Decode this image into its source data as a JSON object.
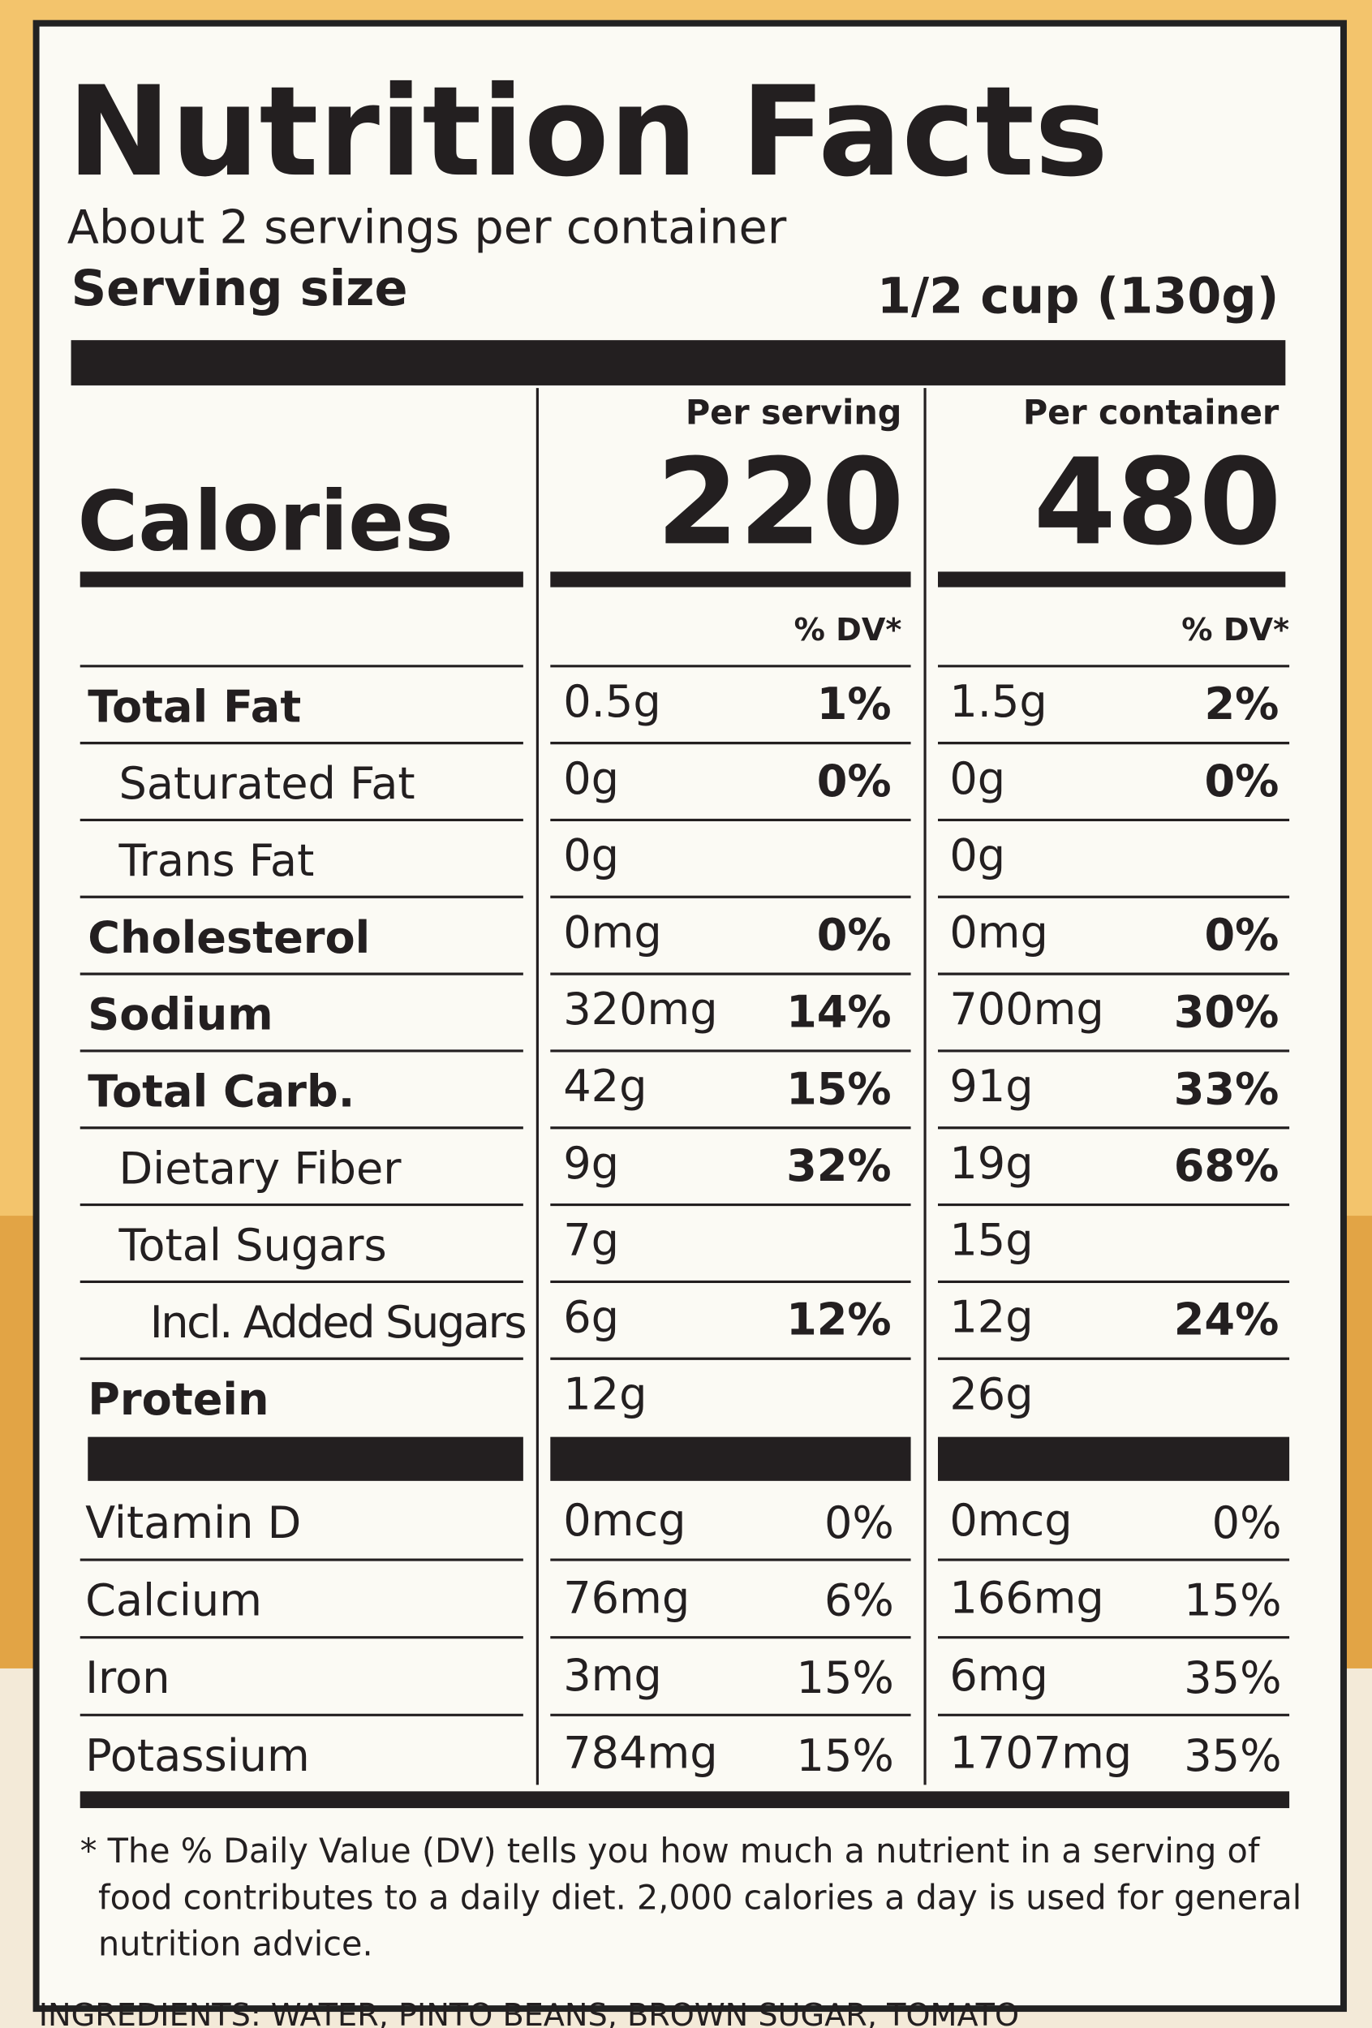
{
  "header": {
    "title": "Nutrition Facts",
    "servings": "About 2 servings per container",
    "serving_size_label": "Serving size",
    "serving_size": "1/2 cup (130g)"
  },
  "columns": [
    "Per serving",
    "Per container"
  ],
  "calories": {
    "label": "Calories",
    "values": [
      "220",
      "480"
    ]
  },
  "dv_header": [
    "% DV*",
    "% DV*"
  ],
  "nutrients": [
    {
      "name": "Total Fat",
      "bold": true,
      "indent": 0,
      "values": [
        [
          "0.5g",
          "1%"
        ],
        [
          "1.5g",
          "2%"
        ]
      ]
    },
    {
      "name": "Saturated Fat",
      "bold": false,
      "indent": 1,
      "values": [
        [
          "0g",
          "0%"
        ],
        [
          "0g",
          "0%"
        ]
      ]
    },
    {
      "name": "Trans Fat",
      "bold": false,
      "indent": 1,
      "values": [
        [
          "0g"
        ],
        [
          "0g"
        ]
      ]
    },
    {
      "name": "Cholesterol",
      "bold": true,
      "indent": 0,
      "values": [
        [
          "0mg",
          "0%"
        ],
        [
          "0mg",
          "0%"
        ]
      ]
    },
    {
      "name": "Sodium",
      "bold": true,
      "indent": 0,
      "values": [
        [
          "320mg",
          "14%"
        ],
        [
          "700mg",
          "30%"
        ]
      ]
    },
    {
      "name": "Total Carb.",
      "bold": true,
      "indent": 0,
      "values": [
        [
          "42g",
          "15%"
        ],
        [
          "91g",
          "33%"
        ]
      ]
    },
    {
      "name": "Dietary Fiber",
      "bold": false,
      "indent": 1,
      "values": [
        [
          "9g",
          "32%"
        ],
        [
          "19g",
          "68%"
        ]
      ]
    },
    {
      "name": "Total Sugars",
      "bold": false,
      "indent": 1,
      "values": [
        [
          "7g"
        ],
        [
          "15g"
        ]
      ]
    },
    {
      "name": "Incl. Added Sugars",
      "bold": false,
      "indent": 2,
      "values": [
        [
          "6g",
          "12%"
        ],
        [
          "12g",
          "24%"
        ]
      ]
    },
    {
      "name": "Protein",
      "bold": true,
      "indent": 0,
      "values": [
        [
          "12g"
        ],
        [
          "26g"
        ]
      ]
    }
  ],
  "vitamins": [
    {
      "name": "Vitamin D",
      "values": [
        [
          "0mcg",
          "0%"
        ],
        [
          "0mcg",
          "0%"
        ]
      ]
    },
    {
      "name": "Calcium",
      "values": [
        [
          "76mg",
          "6%"
        ],
        [
          "166mg",
          "15%"
        ]
      ]
    },
    {
      "name": "Iron",
      "values": [
        [
          "3mg",
          "15%"
        ],
        [
          "6mg",
          "35%"
        ]
      ]
    },
    {
      "name": "Potassium",
      "values": [
        [
          "784mg",
          "15%"
        ],
        [
          "1707mg",
          "35%"
        ]
      ]
    }
  ],
  "footnote": [
    "* The % Daily Value (DV) tells you how much a nutrient in a serving of",
    "food contributes to a daily diet. 2,000 calories a day is used for general",
    "nutrition advice."
  ],
  "ingredients": "INGREDIENTS: WATER, PINTO BEANS, BROWN SUGAR, TOMATO"
}
